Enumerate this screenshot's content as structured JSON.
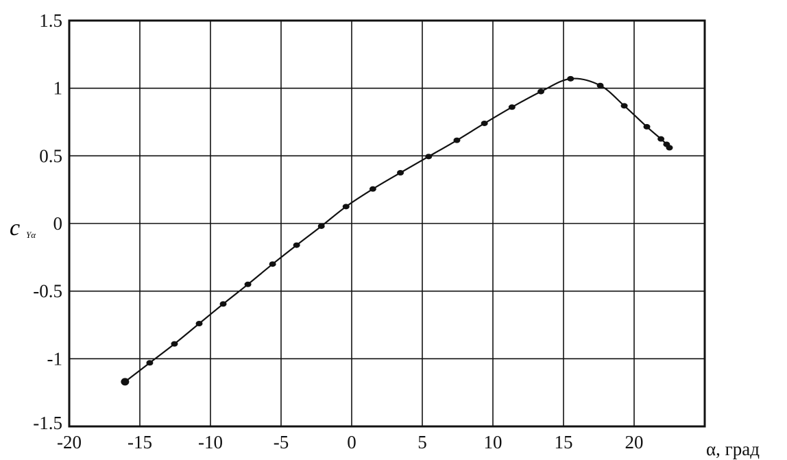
{
  "chart_data": {
    "type": "line",
    "title": "",
    "xlabel": "α, град",
    "ylabel_main": "c",
    "ylabel_sub": "Yα",
    "xlim": [
      -20,
      25
    ],
    "ylim": [
      -1.5,
      1.5
    ],
    "grid": true,
    "x_ticks": [
      "-20",
      "-15",
      "-10",
      "-5",
      "0",
      "5",
      "10",
      "15",
      "20"
    ],
    "y_ticks": [
      "1.5",
      "1",
      "0.5",
      "0",
      "-0.5",
      "-1",
      "-1.5"
    ],
    "markers": true,
    "series": [
      {
        "x": [
          -16.05,
          -14.3,
          -12.55,
          -10.8,
          -9.1,
          -7.35,
          -5.6,
          -3.9,
          -2.15,
          -0.4,
          1.5,
          3.45,
          5.45,
          7.45,
          9.4,
          11.35,
          13.4,
          15.5,
          17.6,
          19.3,
          20.9,
          21.9,
          22.3,
          22.5
        ],
        "y": [
          -1.17,
          -1.03,
          -0.89,
          -0.74,
          -0.595,
          -0.45,
          -0.3,
          -0.16,
          -0.02,
          0.125,
          0.255,
          0.375,
          0.495,
          0.615,
          0.74,
          0.86,
          0.975,
          1.07,
          1.02,
          0.87,
          0.715,
          0.625,
          0.585,
          0.56
        ]
      }
    ],
    "colors": {
      "line": "#111111",
      "grid": "#111111"
    }
  }
}
